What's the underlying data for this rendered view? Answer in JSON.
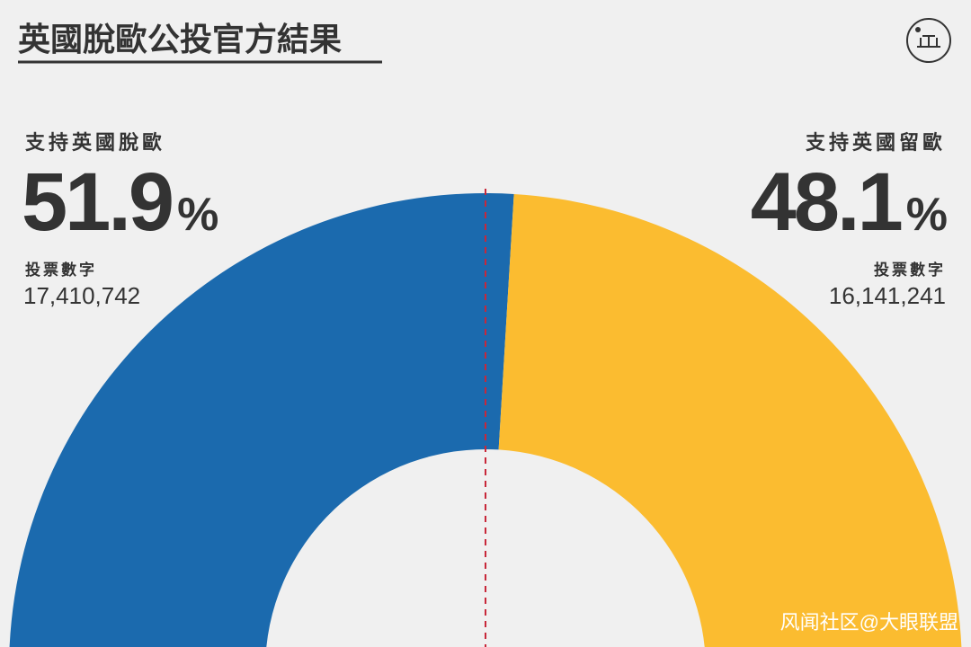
{
  "chart_data": {
    "type": "half-donut",
    "title": "英國脫歐公投官方結果",
    "categories": [
      "支持英國脫歐",
      "支持英國留歐"
    ],
    "values": [
      51.9,
      48.1
    ],
    "unit": "%",
    "colors": [
      "#1b6aae",
      "#fbbc30"
    ],
    "vote_label": "投票數字",
    "votes": [
      {
        "value": 17410742,
        "label": "17,410,742"
      },
      {
        "value": 16141241,
        "label": "16,141,241"
      }
    ],
    "watermark": "风闻社区@大眼联盟"
  }
}
